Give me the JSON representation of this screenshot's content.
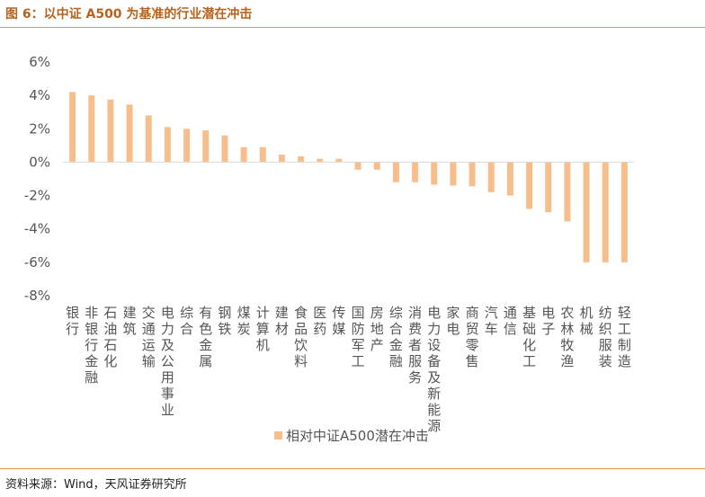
{
  "figure": {
    "title": "图 6：以中证 A500 为基准的行业潜在冲击",
    "source": "资料来源：Wind，天风证券研究所"
  },
  "colors": {
    "bar": "#f7be8c",
    "accent": "#e7963f",
    "title": "#b8621b",
    "axis_text": "#555555"
  },
  "chart_data": {
    "type": "bar",
    "categories": [
      "银行",
      "非银行金融",
      "石油石化",
      "建筑",
      "交通运输",
      "电力及公用事业",
      "综合",
      "有色金属",
      "钢铁",
      "煤炭",
      "计算机",
      "建材",
      "食品饮料",
      "医药",
      "传媒",
      "国防军工",
      "房地产",
      "综合金融",
      "消费者服务",
      "电力设备及新能源",
      "家电",
      "商贸零售",
      "汽车",
      "通信",
      "基础化工",
      "电子",
      "农林牧渔",
      "机械",
      "纺织服装",
      "轻工制造"
    ],
    "series": [
      {
        "name": "相对中证A500潜在冲击",
        "values": [
          4.2,
          4.0,
          3.75,
          3.45,
          2.8,
          2.1,
          2.0,
          1.9,
          1.6,
          0.9,
          0.9,
          0.45,
          0.35,
          0.2,
          0.2,
          -0.45,
          -0.45,
          -1.2,
          -1.2,
          -1.35,
          -1.4,
          -1.45,
          -1.8,
          -2.0,
          -2.8,
          -3.0,
          -3.55,
          -6.0,
          -6.0,
          -6.0
        ]
      }
    ],
    "ylim": [
      -8,
      6
    ],
    "yticks": [
      "-8%",
      "-6%",
      "-4%",
      "-2%",
      "0%",
      "2%",
      "4%",
      "6%"
    ],
    "ytick_values": [
      -8,
      -6,
      -4,
      -2,
      0,
      2,
      4,
      6
    ],
    "legend": {
      "position": "bottom"
    },
    "grid": false
  }
}
